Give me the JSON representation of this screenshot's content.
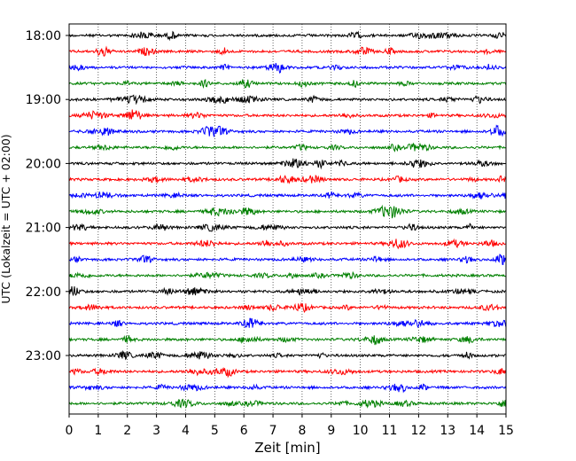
{
  "chart_data": {
    "type": "line",
    "title": "",
    "xlabel": "Zeit  [min]",
    "ylabel": "UTC (Lokalzeit = UTC + 02:00)",
    "xlim": [
      0,
      15
    ],
    "x_ticks": [
      "0",
      "1",
      "2",
      "3",
      "4",
      "5",
      "6",
      "7",
      "8",
      "9",
      "10",
      "11",
      "12",
      "13",
      "14",
      "15"
    ],
    "grid": "vertical-dotted",
    "trace_interval_min": 15,
    "start_time": "18:00",
    "y_ticks": [
      "18:00",
      "19:00",
      "20:00",
      "21:00",
      "22:00",
      "23:00"
    ],
    "trace_colors": [
      "#000000",
      "#ff0000",
      "#0000ff",
      "#008000"
    ],
    "traces": [
      {
        "time": "18:00",
        "color": "#000000"
      },
      {
        "time": "18:15",
        "color": "#ff0000"
      },
      {
        "time": "18:30",
        "color": "#0000ff"
      },
      {
        "time": "18:45",
        "color": "#008000"
      },
      {
        "time": "19:00",
        "color": "#000000"
      },
      {
        "time": "19:15",
        "color": "#ff0000"
      },
      {
        "time": "19:30",
        "color": "#0000ff"
      },
      {
        "time": "19:45",
        "color": "#008000"
      },
      {
        "time": "20:00",
        "color": "#000000"
      },
      {
        "time": "20:15",
        "color": "#ff0000"
      },
      {
        "time": "20:30",
        "color": "#0000ff"
      },
      {
        "time": "20:45",
        "color": "#008000"
      },
      {
        "time": "21:00",
        "color": "#000000"
      },
      {
        "time": "21:15",
        "color": "#ff0000"
      },
      {
        "time": "21:30",
        "color": "#0000ff"
      },
      {
        "time": "21:45",
        "color": "#008000"
      },
      {
        "time": "22:00",
        "color": "#000000"
      },
      {
        "time": "22:15",
        "color": "#ff0000"
      },
      {
        "time": "22:30",
        "color": "#0000ff"
      },
      {
        "time": "22:45",
        "color": "#008000"
      },
      {
        "time": "23:00",
        "color": "#000000"
      },
      {
        "time": "23:15",
        "color": "#ff0000"
      },
      {
        "time": "23:30",
        "color": "#0000ff"
      },
      {
        "time": "23:45",
        "color": "#008000"
      }
    ]
  }
}
